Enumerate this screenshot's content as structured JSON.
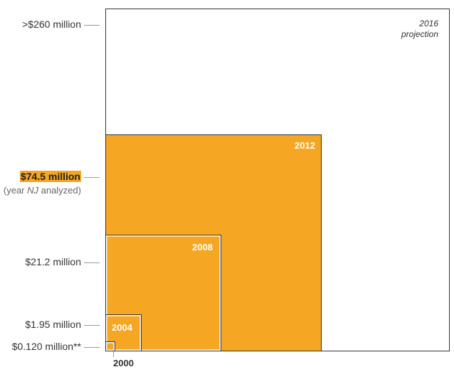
{
  "chart_data": {
    "type": "nested-squares",
    "series": [
      {
        "year": "2000",
        "value_label": "$0.120 million**",
        "value_millions": 0.12
      },
      {
        "year": "2004",
        "value_label": "$1.95 million",
        "value_millions": 1.95
      },
      {
        "year": "2008",
        "value_label": "$21.2 million",
        "value_millions": 21.2
      },
      {
        "year": "2012",
        "value_label": "$74.5 million",
        "value_millions": 74.5,
        "highlight": true
      },
      {
        "year": "2016",
        "value_label": ">$260 million",
        "value_millions": 260,
        "note": "projection"
      }
    ],
    "highlight_note": {
      "before": "(year ",
      "italic": "NJ",
      "after": " analyzed)"
    },
    "colors": {
      "fill": "#F5A623",
      "outline": "#333333",
      "leader": "#999999"
    }
  }
}
